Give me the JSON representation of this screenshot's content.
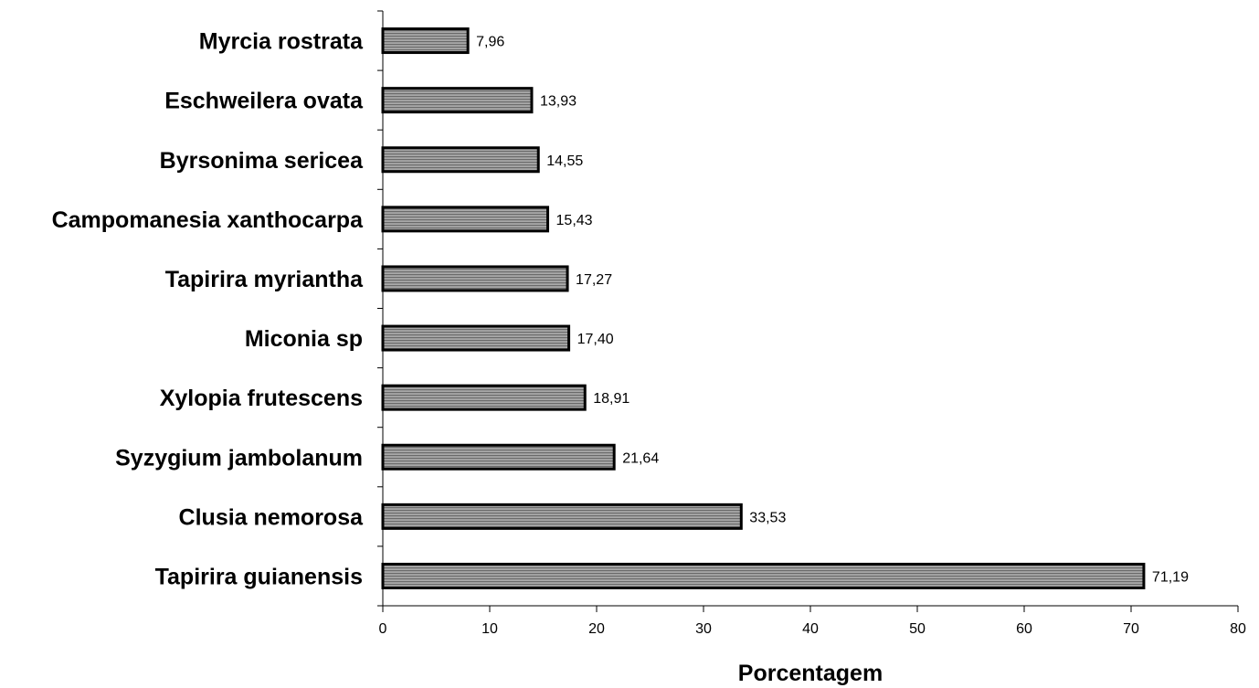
{
  "chart_data": {
    "type": "bar",
    "orientation": "horizontal",
    "title": "",
    "xlabel": "Porcentagem",
    "ylabel": "",
    "xlim": [
      0,
      80
    ],
    "xticks": [
      "0",
      "10",
      "20",
      "30",
      "40",
      "50",
      "60",
      "70",
      "80"
    ],
    "grid": false,
    "categories": [
      "Myrcia rostrata",
      "Eschweilera ovata",
      "Byrsonima sericea",
      "Campomanesia xanthocarpa",
      "Tapirira myriantha",
      "Miconia sp",
      "Xylopia frutescens",
      "Syzygium jambolanum",
      "Clusia nemorosa",
      "Tapirira guianensis"
    ],
    "values": [
      7.96,
      13.93,
      14.55,
      15.43,
      17.27,
      17.4,
      18.91,
      21.64,
      33.53,
      71.19
    ],
    "value_labels": [
      "7,96",
      "13,93",
      "14,55",
      "15,43",
      "17,27",
      "17,40",
      "18,91",
      "21,64",
      "33,53",
      "71,19"
    ],
    "bar_fill": "#9a9a9a",
    "bar_stripe": "#6a6a6a",
    "bar_border": "#000000"
  }
}
